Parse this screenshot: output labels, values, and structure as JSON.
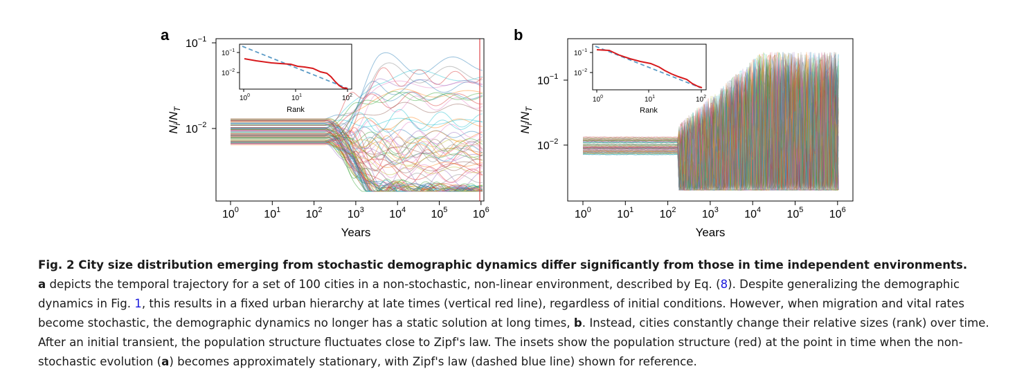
{
  "panels": [
    {
      "label": "a",
      "ylabel_main": "N",
      "ylabel_sub": "i",
      "ylabel_main2": "N",
      "ylabel_sub2": "T",
      "xlabel": "Years",
      "yticks": [
        {
          "base": "10",
          "exp": "−1"
        },
        {
          "base": "10",
          "exp": "−2"
        }
      ],
      "xticks": [
        {
          "base": "10",
          "exp": "0"
        },
        {
          "base": "10",
          "exp": "1"
        },
        {
          "base": "10",
          "exp": "2"
        },
        {
          "base": "10",
          "exp": "3"
        },
        {
          "base": "10",
          "exp": "4"
        },
        {
          "base": "10",
          "exp": "5"
        },
        {
          "base": "10",
          "exp": "6"
        }
      ],
      "inset": {
        "xlabel": "Rank",
        "xticks": [
          {
            "base": "10",
            "exp": "0"
          },
          {
            "base": "10",
            "exp": "1"
          },
          {
            "base": "10",
            "exp": "2"
          }
        ],
        "yticks": [
          {
            "base": "10",
            "exp": "−1"
          },
          {
            "base": "10",
            "exp": "−2"
          }
        ]
      }
    },
    {
      "label": "b",
      "ylabel_main": "N",
      "ylabel_sub": "i",
      "ylabel_main2": "N",
      "ylabel_sub2": "T",
      "xlabel": "Years",
      "yticks": [
        {
          "base": "10",
          "exp": "−1"
        },
        {
          "base": "10",
          "exp": "−2"
        }
      ],
      "xticks": [
        {
          "base": "10",
          "exp": "0"
        },
        {
          "base": "10",
          "exp": "1"
        },
        {
          "base": "10",
          "exp": "2"
        },
        {
          "base": "10",
          "exp": "3"
        },
        {
          "base": "10",
          "exp": "4"
        },
        {
          "base": "10",
          "exp": "5"
        },
        {
          "base": "10",
          "exp": "6"
        }
      ],
      "inset": {
        "xlabel": "Rank",
        "xticks": [
          {
            "base": "10",
            "exp": "0"
          },
          {
            "base": "10",
            "exp": "1"
          },
          {
            "base": "10",
            "exp": "2"
          }
        ],
        "yticks": [
          {
            "base": "10",
            "exp": "−1"
          },
          {
            "base": "10",
            "exp": "−2"
          }
        ]
      }
    }
  ],
  "colors": {
    "stationary_line": "#e0474c",
    "population_structure": "#d7191c",
    "zipf_line": "#5b9bc6",
    "trajectories": [
      "#1f77b4",
      "#ff7f0e",
      "#2ca02c",
      "#d62728",
      "#9467bd",
      "#8c564b",
      "#e377c2",
      "#7f7f7f",
      "#bcbd22",
      "#17becf"
    ]
  },
  "caption": {
    "title": "Fig. 2 City size distribution emerging from stochastic demographic dynamics differ significantly from those in time independent environments.",
    "t1_bold": "a",
    "t2": " depicts the temporal trajectory for a set of 100 cities in a non-stochastic, non-linear environment, described by Eq. (",
    "ref_eq": "8",
    "t3": "). Despite generalizing the demographic dynamics in Fig. ",
    "ref_fig": "1",
    "t4": ", this results in a fixed urban hierarchy at late times (vertical red line), regardless of initial conditions. However, when migration and vital rates become stochastic, the demographic dynamics no longer has a static solution at long times, ",
    "t5_bold": "b",
    "t6": ". Instead, cities constantly change their relative sizes (rank) over time. After an initial transient, the population structure fluctuates close to Zipf's law. The insets show the population structure (red) at the point in time when the non-stochastic evolution (",
    "t7_bold": "a",
    "t8": ") becomes approximately stationary, with Zipf's law (dashed blue line) shown for reference."
  }
}
